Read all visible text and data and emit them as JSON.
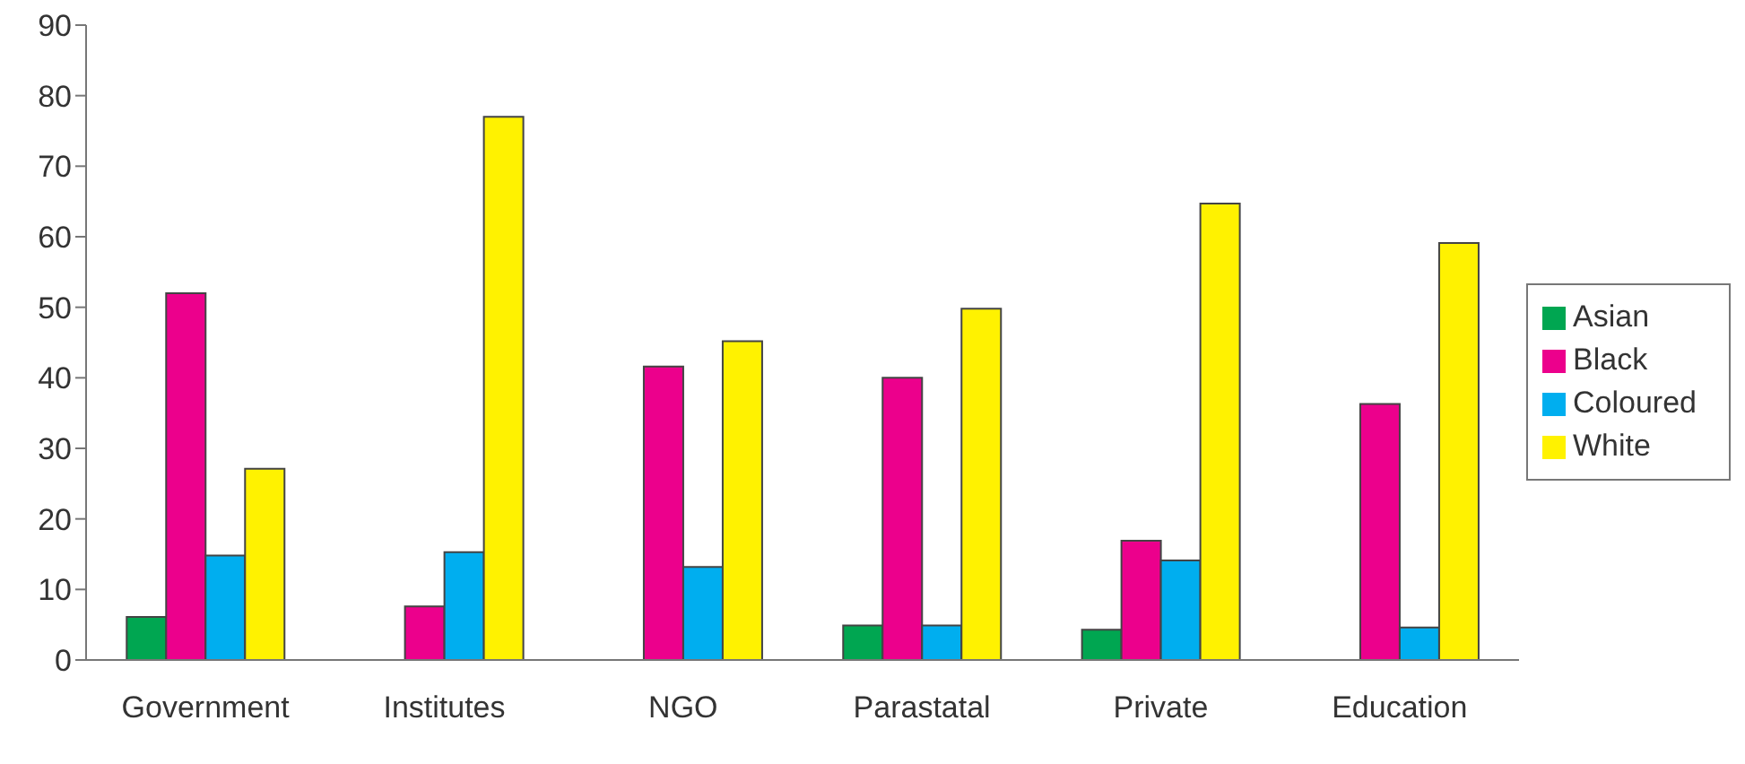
{
  "chart_data": {
    "type": "bar",
    "categories": [
      "Government",
      "Institutes",
      "NGO",
      "Parastatal",
      "Private",
      "Education"
    ],
    "series": [
      {
        "name": "Asian",
        "color": "#00a651",
        "values": [
          6.1,
          0,
          0,
          4.9,
          4.3,
          0
        ]
      },
      {
        "name": "Black",
        "color": "#ec008c",
        "values": [
          52,
          7.6,
          41.6,
          40,
          16.9,
          36.3
        ]
      },
      {
        "name": "Coloured",
        "color": "#00aeef",
        "values": [
          14.8,
          15.3,
          13.2,
          4.9,
          14.1,
          4.6
        ]
      },
      {
        "name": "White",
        "color": "#fff200",
        "values": [
          27.1,
          77,
          45.2,
          49.8,
          64.7,
          59.1
        ]
      }
    ],
    "ylim": [
      0,
      90
    ],
    "yticks": [
      0,
      10,
      20,
      30,
      40,
      50,
      60,
      70,
      80,
      90
    ],
    "grid": false,
    "legend": "right"
  }
}
